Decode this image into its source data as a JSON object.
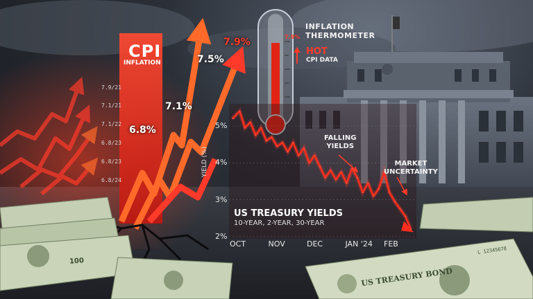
{
  "cpi_panel": {
    "title": "CPI",
    "subtitle": "INFLATION",
    "dates": [
      "7.9/21",
      "7.1/21",
      "7.1/22",
      "6.8/23",
      "6.8/23",
      "6.8/24"
    ],
    "labels": [
      "6.8%",
      "7.1%",
      "7.5%",
      "7.9%"
    ]
  },
  "thermometer": {
    "label_line1": "INFLATION",
    "label_line2": "THERMOMETER",
    "reading": "7.9%",
    "hot_label": "HOT",
    "cpi_data_label": "CPI DATA"
  },
  "annotations": {
    "falling_line1": "FALLING",
    "falling_line2": "YIELDS",
    "uncertainty_line1": "MARKET",
    "uncertainty_line2": "UNCERTAINTY"
  },
  "chart_data": {
    "type": "line",
    "title": "US TREASURY YIELDS",
    "subtitle": "10-YEAR, 2-YEAR, 30-YEAR",
    "ylabel": "YIELD (%)",
    "xlabel": "",
    "x_ticks": [
      "OCT",
      "NOV",
      "DEC",
      "JAN '24",
      "FEB"
    ],
    "y_ticks": [
      "5%",
      "4%",
      "3%",
      "2%"
    ],
    "ylim": [
      2,
      5.6
    ],
    "xlim": [
      0,
      1
    ],
    "grid": true,
    "series": [
      {
        "x": [
          0.0,
          0.04,
          0.07,
          0.1,
          0.13,
          0.16,
          0.19,
          0.22,
          0.25,
          0.28,
          0.31,
          0.34,
          0.37,
          0.4,
          0.43,
          0.46,
          0.49,
          0.52,
          0.55,
          0.58,
          0.61,
          0.64,
          0.67,
          0.7,
          0.73,
          0.76,
          0.79,
          0.82,
          0.85,
          0.88,
          0.91,
          0.94,
          0.97,
          1.0
        ],
        "values": [
          5.2,
          5.4,
          4.95,
          5.1,
          4.75,
          4.95,
          4.6,
          4.7,
          4.45,
          4.55,
          4.3,
          4.55,
          4.2,
          4.4,
          4.0,
          4.2,
          3.9,
          3.6,
          3.8,
          3.55,
          3.75,
          3.45,
          3.85,
          3.6,
          3.2,
          3.45,
          3.1,
          3.3,
          3.75,
          3.2,
          2.95,
          2.75,
          2.55,
          2.2
        ]
      }
    ]
  },
  "colors": {
    "accent_red": "#ff3a2a",
    "arrow_orange": "#ff6a2a",
    "cpi_bar": "#e8291c",
    "money_green": "#b9c7a8",
    "fed_building": "#4a5260"
  },
  "props": {
    "bill_text": "US TREASURY BOND",
    "bill_corner": "100",
    "bill_serial": "L 12345678"
  }
}
